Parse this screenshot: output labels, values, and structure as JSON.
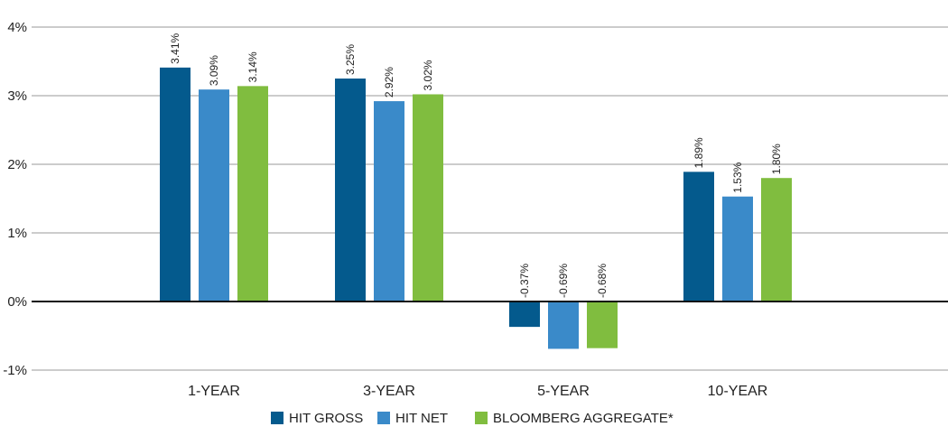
{
  "chart_data": {
    "type": "bar",
    "title": "",
    "xlabel": "",
    "ylabel": "",
    "categories": [
      "1-YEAR",
      "3-YEAR",
      "5-YEAR",
      "10-YEAR"
    ],
    "series": [
      {
        "name": "HIT GROSS",
        "values": [
          3.41,
          3.25,
          -0.37,
          1.89
        ],
        "labels": [
          "3.41%",
          "3.25%",
          "-0.37%",
          "1.89%"
        ],
        "color": "#045a8d"
      },
      {
        "name": "HIT NET",
        "values": [
          3.09,
          2.92,
          -0.69,
          1.53
        ],
        "labels": [
          "3.09%",
          "2.92%",
          "-0.69%",
          "1.53%"
        ],
        "color": "#3a8ac9"
      },
      {
        "name": "BLOOMBERG AGGREGATE*",
        "values": [
          3.14,
          3.02,
          -0.68,
          1.8
        ],
        "labels": [
          "3.14%",
          "3.02%",
          "-0.68%",
          "1.80%"
        ],
        "color": "#80bd3f"
      }
    ],
    "ylim": [
      -1,
      4
    ],
    "yticks": [
      4,
      3,
      2,
      1,
      0,
      -1
    ],
    "ytick_labels": [
      "4%",
      "3%",
      "2%",
      "1%",
      "0%",
      "-1%"
    ],
    "grid": true,
    "legend_placement": "bottom-center"
  }
}
